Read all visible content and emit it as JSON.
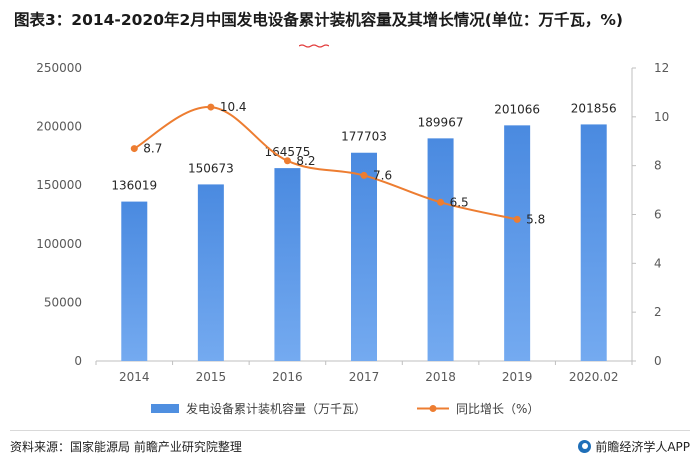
{
  "title": "图表3：2014-2020年2月中国发电设备累计装机容量及其增长情况(单位：万千瓦，%)",
  "source": "资料来源：国家能源局 前瞻产业研究院整理",
  "brand": "前瞻经济学人APP",
  "colors": {
    "bar": "#4f8fe0",
    "line": "#ed7d31",
    "axis": "#bfbfbf",
    "text": "#595959",
    "underline": "#e23b3b"
  },
  "chart_data": {
    "type": "bar",
    "categories": [
      "2014",
      "2015",
      "2016",
      "2017",
      "2018",
      "2019",
      "2020.02"
    ],
    "series": [
      {
        "name": "发电设备累计装机容量（万千瓦）",
        "type": "bar",
        "axis": "left",
        "values": [
          136019,
          150673,
          164575,
          177703,
          189967,
          201066,
          201856
        ]
      },
      {
        "name": "同比增长（%）",
        "type": "line",
        "axis": "right",
        "values": [
          8.7,
          10.4,
          8.2,
          7.6,
          6.5,
          5.8,
          null
        ]
      }
    ],
    "y_left": {
      "ylim": [
        0,
        250000
      ],
      "ticks": [
        "0",
        "50000",
        "100000",
        "150000",
        "200000",
        "250000"
      ]
    },
    "y_right": {
      "ylim": [
        0,
        12
      ],
      "ticks": [
        "0",
        "2",
        "4",
        "6",
        "8",
        "10",
        "12"
      ]
    },
    "legend_position": "bottom",
    "grid": false
  }
}
